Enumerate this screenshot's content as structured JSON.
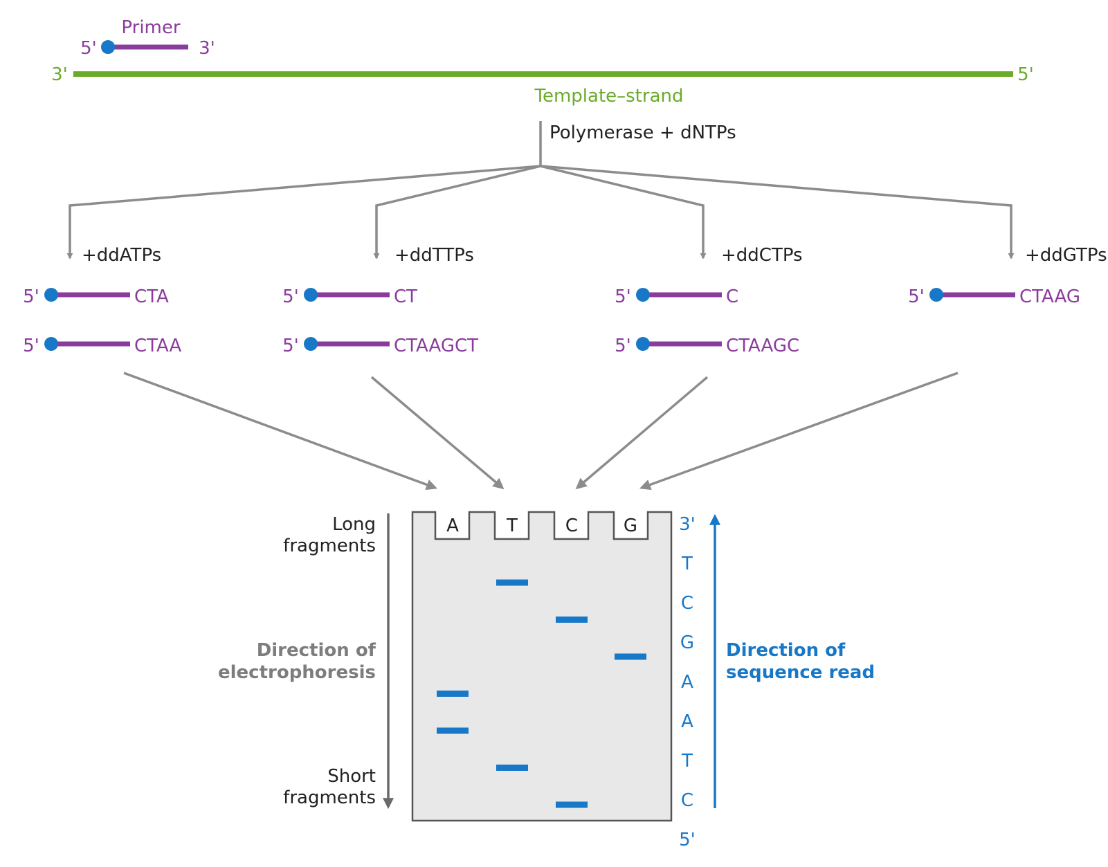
{
  "primer": {
    "label": "Primer",
    "five": "5'",
    "three": "3'"
  },
  "template": {
    "three": "3'",
    "five": "5'",
    "label": "Template–strand"
  },
  "polymerase_label": "Polymerase + dNTPs",
  "reactions": [
    {
      "reagent": "+ddATPs",
      "fragments": [
        {
          "five": "5'",
          "seq": "CTA"
        },
        {
          "five": "5'",
          "seq": "CTAA"
        }
      ]
    },
    {
      "reagent": "+ddTTPs",
      "fragments": [
        {
          "five": "5'",
          "seq": "CT"
        },
        {
          "five": "5'",
          "seq": "CTAAGCT"
        }
      ]
    },
    {
      "reagent": "+ddCTPs",
      "fragments": [
        {
          "five": "5'",
          "seq": "C"
        },
        {
          "five": "5'",
          "seq": "CTAAGC"
        }
      ]
    },
    {
      "reagent": "+ddGTPs",
      "fragments": [
        {
          "five": "5'",
          "seq": "CTAAG"
        }
      ]
    }
  ],
  "gel": {
    "lanes": [
      "A",
      "T",
      "C",
      "G"
    ],
    "bands": [
      {
        "lane": "T",
        "order": 1
      },
      {
        "lane": "C",
        "order": 2
      },
      {
        "lane": "G",
        "order": 3
      },
      {
        "lane": "A",
        "order": 4
      },
      {
        "lane": "A",
        "order": 5
      },
      {
        "lane": "T",
        "order": 6
      },
      {
        "lane": "C",
        "order": 7
      }
    ]
  },
  "sequence_read": {
    "top": "3'",
    "bases": [
      "T",
      "C",
      "G",
      "A",
      "A",
      "T",
      "C"
    ],
    "bottom": "5'",
    "label_line1": "Direction of",
    "label_line2": "sequence read"
  },
  "electrophoresis": {
    "long_line1": "Long",
    "long_line2": "fragments",
    "dir_line1": "Direction of",
    "dir_line2": "electrophoresis",
    "short_line1": "Short",
    "short_line2": "fragments"
  },
  "colors": {
    "primer": "#8a3c9c",
    "primer_dot": "#1878c8",
    "template": "#6aab2a",
    "arrow": "#8c8c8c",
    "gel_fill": "#e8e8e8",
    "band": "#1878c8",
    "read": "#1878c8"
  }
}
